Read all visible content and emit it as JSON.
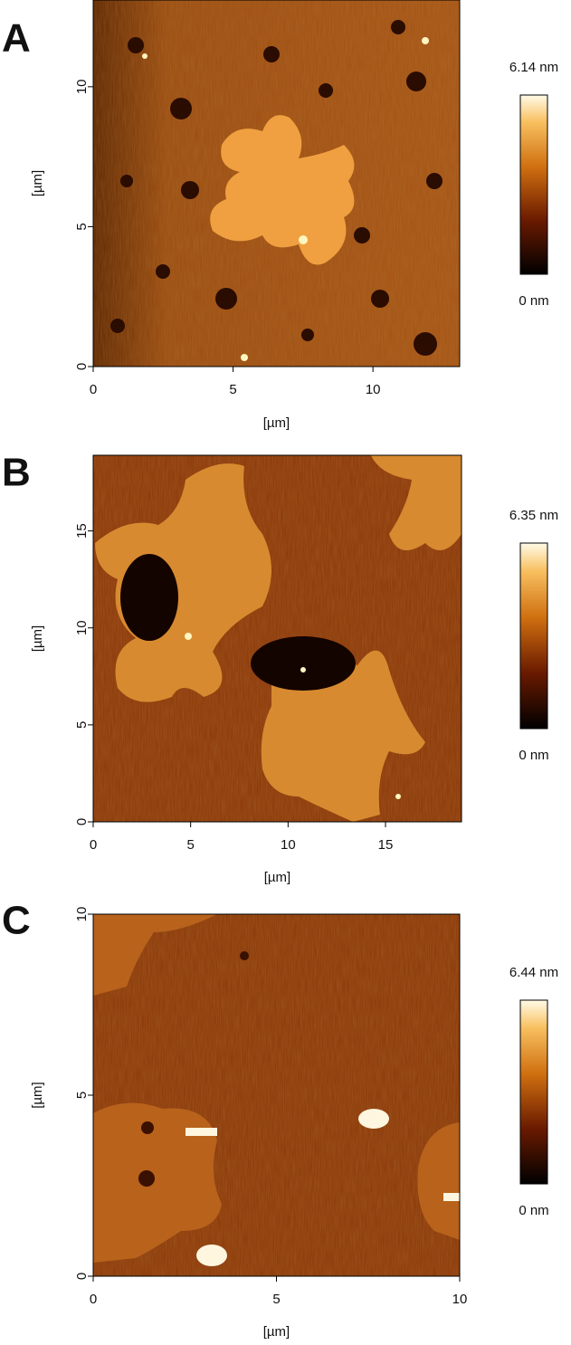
{
  "panels": [
    {
      "label": "A",
      "x_label": "[µm]",
      "y_label": "[µm]",
      "xlim": [
        0,
        13.1
      ],
      "ylim": [
        0,
        13.1
      ],
      "xticks": [
        0,
        5,
        10
      ],
      "yticks": [
        0,
        5,
        10
      ],
      "colorbar": {
        "max_label": "6.14 nm",
        "min_label": "0 nm"
      }
    },
    {
      "label": "B",
      "x_label": "[µm]",
      "y_label": "[µm]",
      "xlim": [
        0,
        18.9
      ],
      "ylim": [
        0,
        18.9
      ],
      "xticks": [
        0,
        5,
        10,
        15
      ],
      "yticks": [
        0,
        5,
        10,
        15
      ],
      "colorbar": {
        "max_label": "6.35 nm",
        "min_label": "0 nm"
      }
    },
    {
      "label": "C",
      "x_label": "[µm]",
      "y_label": "[µm]",
      "xlim": [
        0,
        10
      ],
      "ylim": [
        0,
        10
      ],
      "xticks": [
        0,
        5,
        10
      ],
      "yticks": [
        0,
        5,
        10
      ],
      "colorbar": {
        "max_label": "6.44 nm",
        "min_label": "0 nm"
      }
    }
  ]
}
